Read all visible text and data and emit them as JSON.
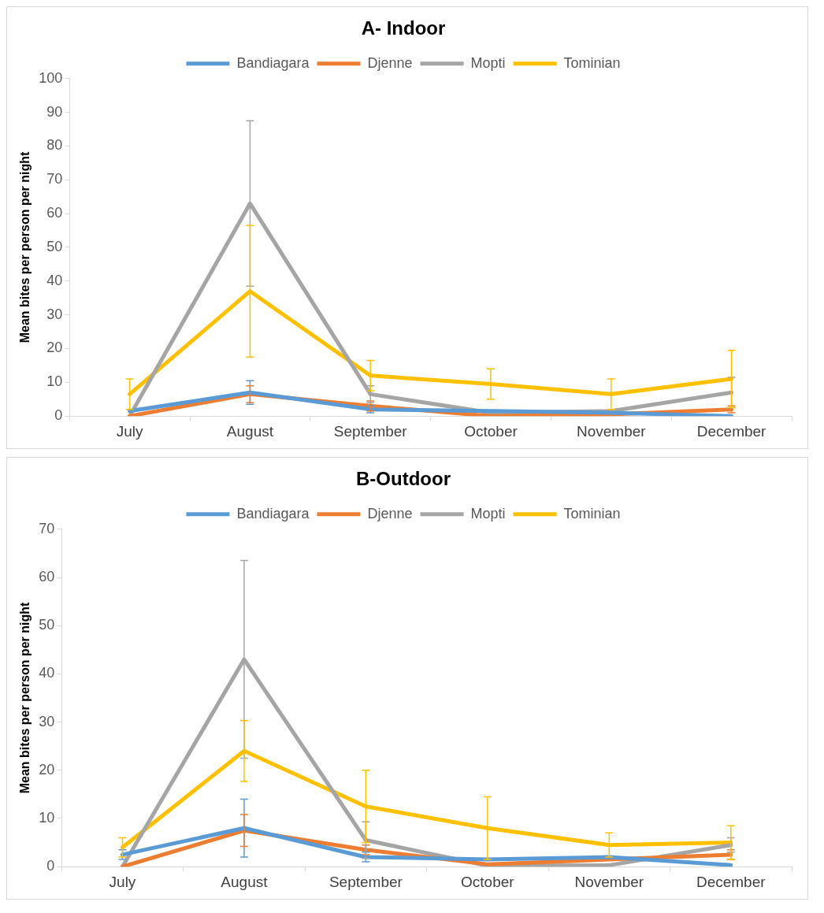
{
  "chart_data": [
    {
      "type": "line",
      "title": "A- Indoor",
      "ylabel": "Mean bites per person per night",
      "categories": [
        "July",
        "August",
        "September",
        "October",
        "November",
        "December"
      ],
      "ylim": [
        0,
        100
      ],
      "yticks": [
        0,
        10,
        20,
        30,
        40,
        50,
        60,
        70,
        80,
        90,
        100
      ],
      "grid": false,
      "legend": "top",
      "marker": "none",
      "line_style": "solid",
      "series": [
        {
          "name": "Bandiagara",
          "color": "#5b9bd5",
          "values": [
            1.5,
            7,
            2,
            1.5,
            1,
            0
          ],
          "errors": [
            null,
            3.5,
            1,
            null,
            null,
            null
          ]
        },
        {
          "name": "Djenne",
          "color": "#ed7d31",
          "values": [
            0,
            6.5,
            3,
            0,
            0.5,
            2
          ],
          "errors": [
            null,
            2.5,
            1.5,
            null,
            null,
            1
          ]
        },
        {
          "name": "Mopti",
          "color": "#a5a5a5",
          "values": [
            0,
            63,
            6.5,
            1,
            1.5,
            7
          ],
          "errors": [
            null,
            24.5,
            2.5,
            null,
            null,
            4.5
          ]
        },
        {
          "name": "Tominian",
          "color": "#ffc000",
          "values": [
            6.5,
            37,
            12,
            9.5,
            6.5,
            11
          ],
          "errors": [
            4.5,
            19.5,
            4.5,
            4.5,
            4.5,
            8.5
          ]
        }
      ]
    },
    {
      "type": "line",
      "title": "B-Outdoor",
      "ylabel": "Mean bites per person per night",
      "categories": [
        "July",
        "August",
        "September",
        "October",
        "November",
        "December"
      ],
      "ylim": [
        0,
        70
      ],
      "yticks": [
        0,
        10,
        20,
        30,
        40,
        50,
        60,
        70
      ],
      "grid": false,
      "legend": "top",
      "marker": "none",
      "line_style": "solid",
      "series": [
        {
          "name": "Bandiagara",
          "color": "#5b9bd5",
          "values": [
            2.5,
            8,
            2,
            1.5,
            2,
            0.3
          ],
          "errors": [
            1,
            6,
            1,
            null,
            null,
            null
          ]
        },
        {
          "name": "Djenne",
          "color": "#ed7d31",
          "values": [
            0,
            7.5,
            3.5,
            0.5,
            1.5,
            2.5
          ],
          "errors": [
            null,
            3.3,
            1,
            null,
            null,
            1
          ]
        },
        {
          "name": "Mopti",
          "color": "#a5a5a5",
          "values": [
            0,
            43,
            5.5,
            0.2,
            0.3,
            4.5
          ],
          "errors": [
            null,
            20.5,
            3.8,
            null,
            null,
            1.5
          ]
        },
        {
          "name": "Tominian",
          "color": "#ffc000",
          "values": [
            4,
            24,
            12.5,
            8,
            4.5,
            5
          ],
          "errors": [
            2,
            6.3,
            7.5,
            6.5,
            2.5,
            3.5
          ]
        }
      ]
    }
  ]
}
